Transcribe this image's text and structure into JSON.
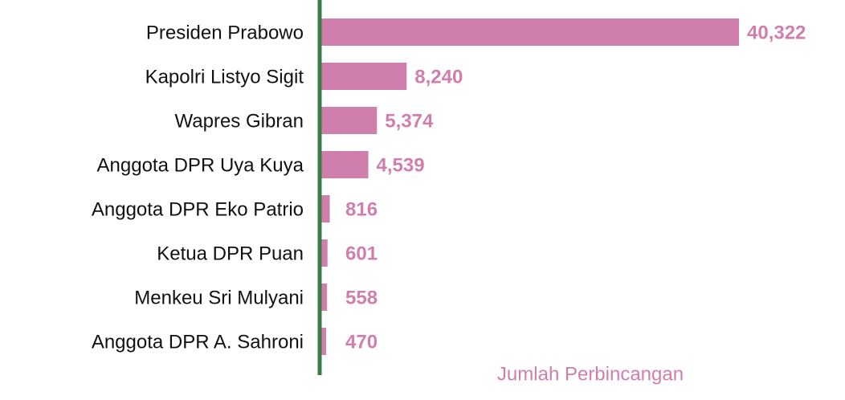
{
  "chart_data": {
    "type": "bar",
    "orientation": "horizontal",
    "x_label": "Jumlah Perbincangan",
    "categories": [
      "Presiden Prabowo",
      "Kapolri Listyo Sigit",
      "Wapres Gibran",
      "Anggota DPR Uya Kuya",
      "Anggota DPR Eko Patrio",
      "Ketua DPR Puan",
      "Menkeu Sri Mulyani",
      "Anggota DPR A. Sahroni"
    ],
    "values": [
      40322,
      8240,
      5374,
      4539,
      816,
      601,
      558,
      470
    ],
    "value_labels": [
      "40,322",
      "8,240",
      "5,374",
      "4,539",
      "816",
      "601",
      "558",
      "470"
    ],
    "color": "#d07fad",
    "axis_color": "#3a7a4a"
  }
}
